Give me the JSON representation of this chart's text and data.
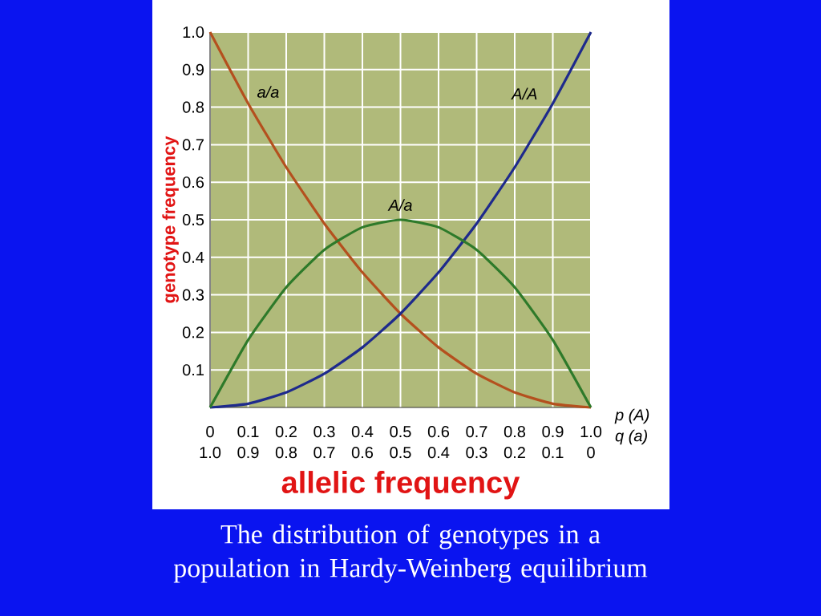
{
  "chart_data": {
    "type": "line",
    "xlabel": "allelic frequency",
    "ylabel": "genotype frequency",
    "annotations": [
      "The distribution of genotypes in a population in Hardy-Weinberg equilibrium",
      "p (A)",
      "q (a)"
    ],
    "x": [
      0,
      0.1,
      0.2,
      0.3,
      0.4,
      0.5,
      0.6,
      0.7,
      0.8,
      0.9,
      1.0
    ],
    "series": [
      {
        "name": "a/a",
        "color": "#b4501e",
        "values": [
          1.0,
          0.81,
          0.64,
          0.49,
          0.36,
          0.25,
          0.16,
          0.09,
          0.04,
          0.01,
          0
        ]
      },
      {
        "name": "A/A",
        "color": "#1e2a8c",
        "values": [
          0,
          0.01,
          0.04,
          0.09,
          0.16,
          0.25,
          0.36,
          0.49,
          0.64,
          0.81,
          1.0
        ]
      },
      {
        "name": "A/a",
        "color": "#2e7a2a",
        "values": [
          0,
          0.18,
          0.32,
          0.42,
          0.48,
          0.5,
          0.48,
          0.42,
          0.32,
          0.18,
          0
        ]
      }
    ],
    "xlim": [
      0,
      1
    ],
    "ylim": [
      0,
      1
    ],
    "xticks": [
      0,
      0.1,
      0.2,
      0.3,
      0.4,
      0.5,
      0.6,
      0.7,
      0.8,
      0.9,
      {
        "value": 1,
        "label": "1.0"
      }
    ],
    "x2lim": [
      1,
      0
    ],
    "x2ticks": [
      {
        "value": 1,
        "label": "1.0"
      },
      0.9,
      0.8,
      0.7,
      0.6,
      0.5,
      0.4,
      0.3,
      0.2,
      0.1,
      0
    ],
    "yticks": [
      0.1,
      0.2,
      0.3,
      0.4,
      0.5,
      0.6,
      0.7,
      0.8,
      0.9,
      {
        "value": 1,
        "label": "1.0"
      }
    ],
    "grid": true,
    "marker": "none",
    "line_style": "solid"
  }
}
